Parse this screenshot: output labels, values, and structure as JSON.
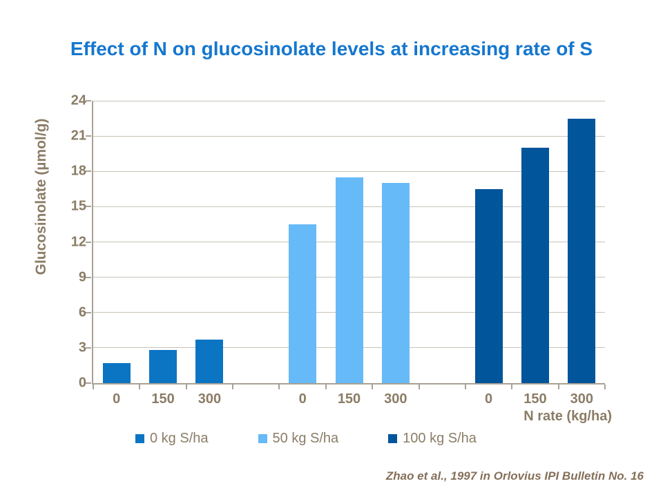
{
  "chart_data": {
    "type": "bar",
    "title": "Effect of N on glucosinolate levels at increasing rate of S",
    "xlabel": "N rate (kg/ha)",
    "ylabel": "Glucosinolate (µmol/g)",
    "ylim": [
      0,
      24
    ],
    "ytick_step": 3,
    "grid": true,
    "legend_position": "bottom",
    "categories": [
      "0",
      "150",
      "300"
    ],
    "series": [
      {
        "name": "0 kg S/ha",
        "color": "#0B75C4",
        "values": [
          1.7,
          2.8,
          3.7
        ]
      },
      {
        "name": "50 kg S/ha",
        "color": "#66BAF7",
        "values": [
          13.5,
          17.5,
          17.0
        ]
      },
      {
        "name": "100 kg S/ha",
        "color": "#00559B",
        "values": [
          16.5,
          20.0,
          22.5
        ]
      }
    ],
    "annotation": "Zhao et al., 1997 in Orlovius IPI Bulletin No. 16"
  },
  "colors": {
    "title": "#1577CE",
    "axis_text": "#8B7C66",
    "axis_line": "#A8A194",
    "gridline": "#C9C3B8",
    "citation": "#85705A",
    "background": "#FFFFFF"
  }
}
